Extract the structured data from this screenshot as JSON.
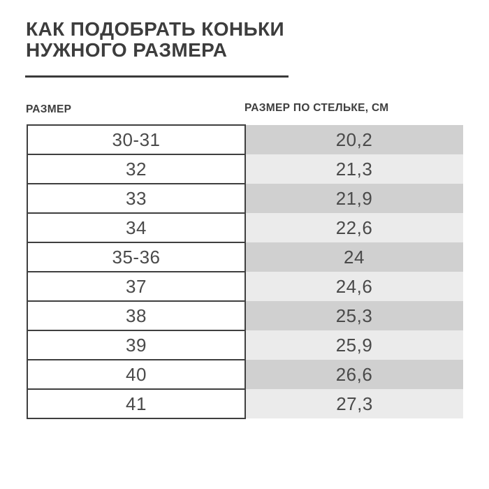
{
  "header": {
    "title_line1": "КАК ПОДОБРАТЬ КОНЬКИ",
    "title_line2": "НУЖНОГО РАЗМЕРА"
  },
  "table": {
    "col1_header": "РАЗМЕР",
    "col2_header": "РАЗМЕР ПО СТЕЛЬКЕ, СМ",
    "rows": [
      {
        "size": "30-31",
        "insole_cm": "20,2"
      },
      {
        "size": "32",
        "insole_cm": "21,3"
      },
      {
        "size": "33",
        "insole_cm": "21,9"
      },
      {
        "size": "34",
        "insole_cm": "22,6"
      },
      {
        "size": "35-36",
        "insole_cm": "24"
      },
      {
        "size": "37",
        "insole_cm": "24,6"
      },
      {
        "size": "38",
        "insole_cm": "25,3"
      },
      {
        "size": "39",
        "insole_cm": "25,9"
      },
      {
        "size": "40",
        "insole_cm": "26,6"
      },
      {
        "size": "41",
        "insole_cm": "27,3"
      }
    ]
  },
  "colors": {
    "title_text": "#3d3d3d",
    "cell_text": "#4a4a4a",
    "cell_border": "#3f3f3f",
    "row_dark": "#d0d0d0",
    "row_light": "#ebebeb",
    "background": "#ffffff"
  },
  "chart_data": {
    "type": "table",
    "title": "КАК ПОДОБРАТЬ КОНЬКИ НУЖНОГО РАЗМЕРА",
    "columns": [
      "РАЗМЕР",
      "РАЗМЕР ПО СТЕЛЬКЕ, СМ"
    ],
    "rows": [
      [
        "30-31",
        "20,2"
      ],
      [
        "32",
        "21,3"
      ],
      [
        "33",
        "21,9"
      ],
      [
        "34",
        "22,6"
      ],
      [
        "35-36",
        "24"
      ],
      [
        "37",
        "24,6"
      ],
      [
        "38",
        "25,3"
      ],
      [
        "39",
        "25,9"
      ],
      [
        "40",
        "26,6"
      ],
      [
        "41",
        "27,3"
      ]
    ],
    "layout_hints": {
      "left_column_style": "white cells with dark borders",
      "right_column_style": "alternating gray bands, odd rows #d0d0d0, even rows #ebebeb",
      "values_are_decimal_comma": true
    }
  }
}
